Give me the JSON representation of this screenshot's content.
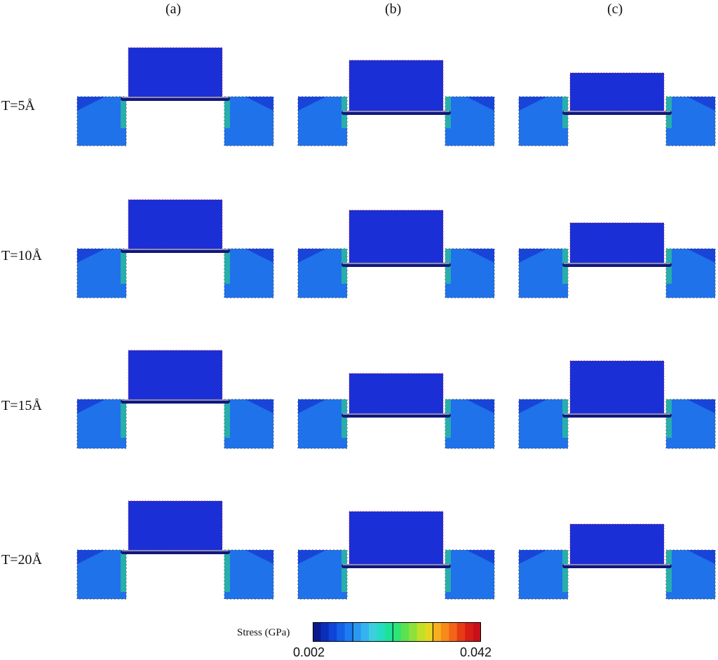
{
  "columns": [
    "(a)",
    "(b)",
    "(c)"
  ],
  "rows": [
    "T=5Å",
    "T=10Å",
    "T=15Å",
    "T=20Å"
  ],
  "colorbar": {
    "title": "Stress (GPa)",
    "min": "0.002",
    "max": "0.042",
    "colors": [
      "#0a1a8c",
      "#0b2fb8",
      "#0d45d8",
      "#1460e8",
      "#1c7cf0",
      "#2a97f2",
      "#35b3ef",
      "#3ccfe0",
      "#25dcc0",
      "#1ee29a",
      "#2ee476",
      "#5ae250",
      "#8ee03a",
      "#c2e02a",
      "#e6d624",
      "#f6b01e",
      "#f78a1a",
      "#f26418",
      "#e63c16",
      "#d81e14",
      "#c8101a"
    ],
    "divider_after": [
      5,
      10,
      15
    ],
    "colormap": "blue-to-red (jet)"
  },
  "colors": {
    "base_stress": "#1f72ea",
    "piston_stress": "#1a2fd6",
    "film": "#10177a",
    "node_markers": "#d03050",
    "high_stress": "#2fe07a"
  }
}
